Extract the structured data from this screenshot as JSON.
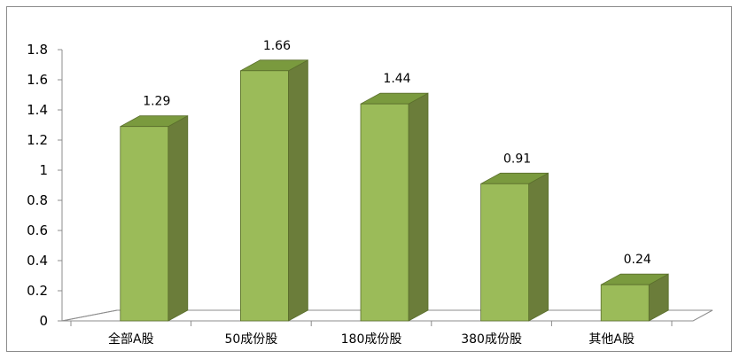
{
  "chart_data": {
    "type": "bar",
    "categories": [
      "全部A股",
      "50成份股",
      "180成份股",
      "380成份股",
      "其他A股"
    ],
    "values": [
      1.29,
      1.66,
      1.44,
      0.91,
      0.24
    ],
    "data_labels": [
      "1.29",
      "1.66",
      "1.44",
      "0.91",
      "0.24"
    ],
    "y_ticks": [
      "0",
      "0.2",
      "0.4",
      "0.6",
      "0.8",
      "1",
      "1.2",
      "1.4",
      "1.6",
      "1.8"
    ],
    "ylim": [
      0,
      1.8
    ],
    "title": "",
    "xlabel": "",
    "ylabel": "",
    "grid": false,
    "legend": "none",
    "style": "3d-column",
    "colors": {
      "bar_front": "#9bbb59",
      "bar_side": "#6b7d3a",
      "bar_top": "#7a9a3e",
      "bar_edge": "#5a6e2c",
      "axis": "#8c8c8c"
    }
  }
}
